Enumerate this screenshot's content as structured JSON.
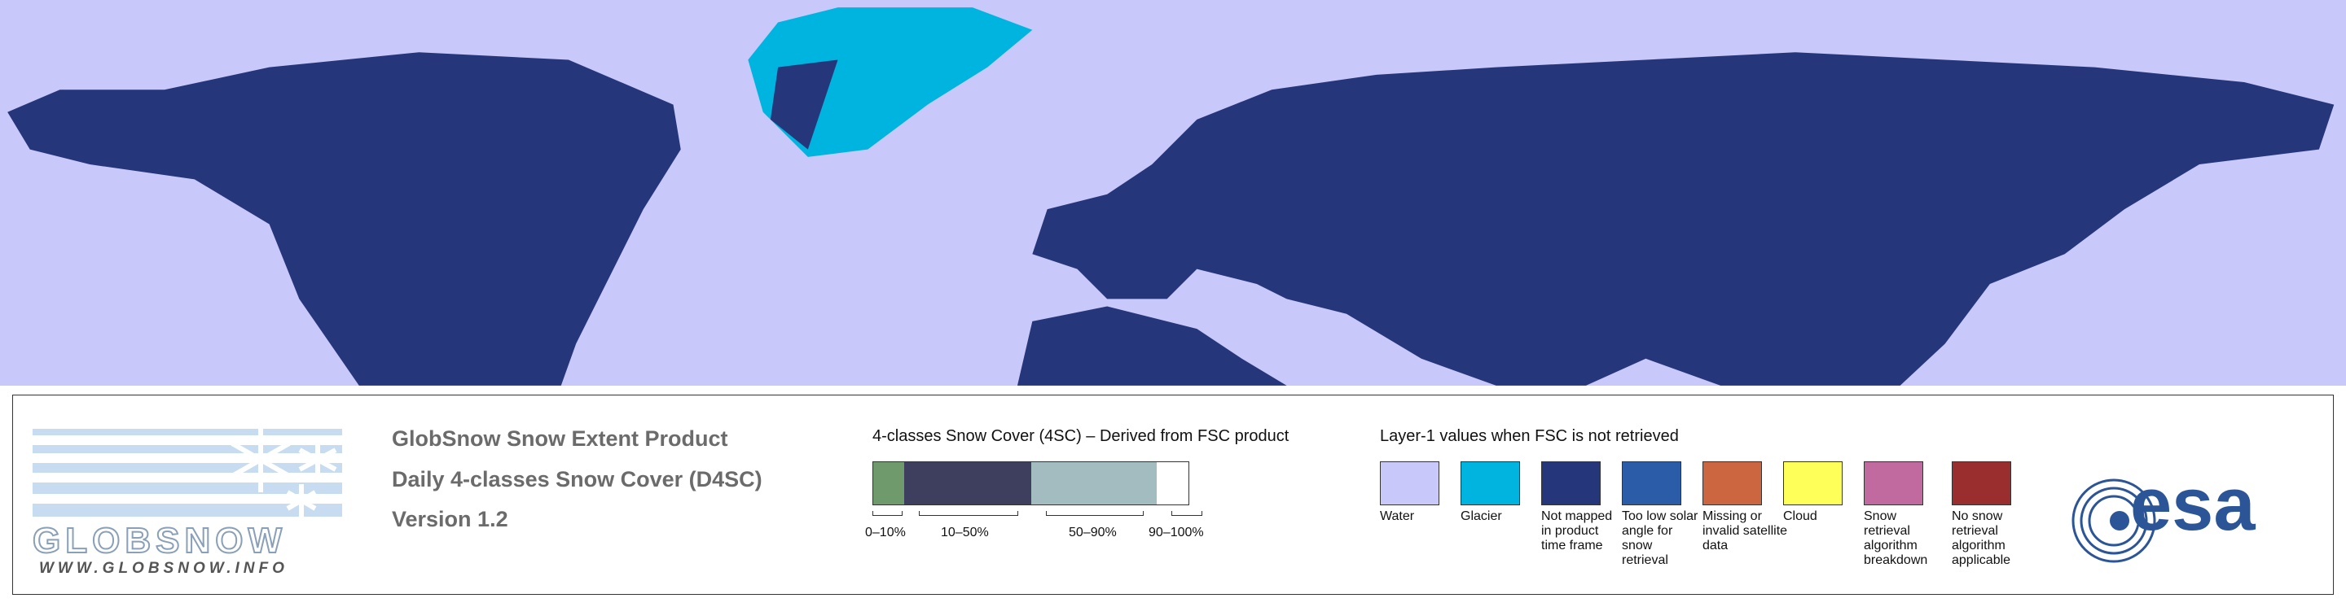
{
  "logo": {
    "name": "GLOBSNOW",
    "url": "WWW.GLOBSNOW.INFO"
  },
  "product": {
    "title": "GlobSnow Snow Extent Product",
    "subtitle": "Daily 4-classes Snow Cover (D4SC)",
    "version": "Version 1.2"
  },
  "classes": {
    "title": "4-classes Snow Cover (4SC) – Derived from FSC product",
    "items": [
      {
        "label": "0–10%",
        "color": "#6f9a6b"
      },
      {
        "label": "10–50%",
        "color": "#3e3f5e"
      },
      {
        "label": "50–90%",
        "color": "#a3bcc0"
      },
      {
        "label": "90–100%",
        "color": "#ffffff"
      }
    ]
  },
  "layer1": {
    "title": "Layer-1 values when FSC is not retrieved",
    "items": [
      {
        "label": "Water",
        "color": "#c8c8fa"
      },
      {
        "label": "Glacier",
        "color": "#00b4e0"
      },
      {
        "label": "Not mapped in product time frame",
        "color": "#26367a"
      },
      {
        "label": "Too low solar angle for snow retrieval",
        "color": "#2a5ca8"
      },
      {
        "label": "Missing or invalid satellite data",
        "color": "#cc6640"
      },
      {
        "label": "Cloud",
        "color": "#ffff5a"
      },
      {
        "label": "Snow retrieval algorithm breakdown",
        "color": "#c06aa0"
      },
      {
        "label": "No snow retrieval algorithm applicable",
        "color": "#9a2e2e"
      }
    ]
  },
  "esa": "esa"
}
